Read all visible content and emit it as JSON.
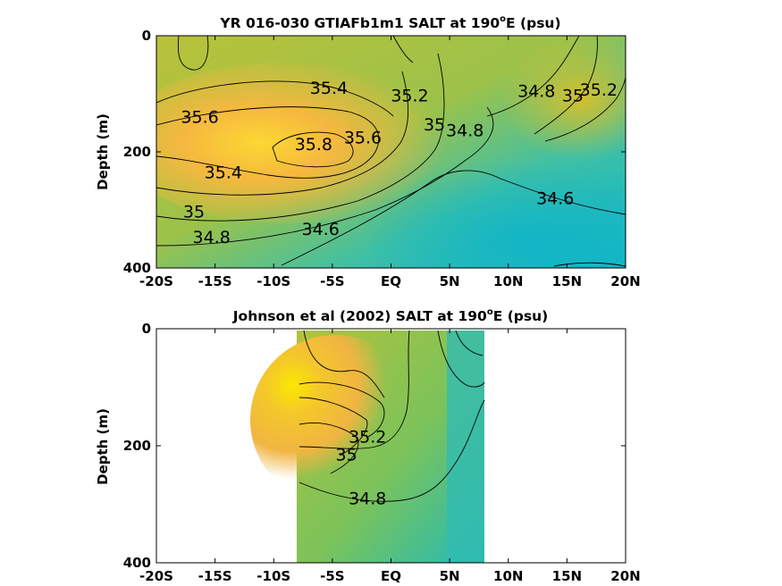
{
  "colors": {
    "low": "#14b8c8",
    "mid": "#8dc450",
    "high": "#f4e21a",
    "peak": "#fbe800",
    "orange": "#f3b53c",
    "background": "#ffffff",
    "axis": "#000000"
  },
  "chart_data": [
    {
      "type": "heatmap",
      "title": "YR 016-030 GTIAFb1m1 SALT at 190",
      "title_superscript": "o",
      "title_suffix": "E (psu)",
      "xlabel": "",
      "ylabel": "Depth (m)",
      "xlim": [
        -20,
        20
      ],
      "ylim": [
        400,
        0
      ],
      "x_ticks": [
        {
          "value": -20,
          "label": "-20S"
        },
        {
          "value": -15,
          "label": "-15S"
        },
        {
          "value": -10,
          "label": "-10S"
        },
        {
          "value": -5,
          "label": "-5S"
        },
        {
          "value": 0,
          "label": "EQ"
        },
        {
          "value": 5,
          "label": "5N"
        },
        {
          "value": 10,
          "label": "10N"
        },
        {
          "value": 15,
          "label": "15N"
        },
        {
          "value": 20,
          "label": "20N"
        }
      ],
      "y_ticks": [
        {
          "value": 0,
          "label": "0"
        },
        {
          "value": 200,
          "label": "200"
        },
        {
          "value": 400,
          "label": "400"
        }
      ],
      "data_extent_x": [
        -20,
        20
      ],
      "colorscale_psu": [
        34.4,
        35.8
      ],
      "contour_labels": [
        {
          "text": "35.4",
          "x": -5.3,
          "y": 100
        },
        {
          "text": "35.6",
          "x": -16.3,
          "y": 150
        },
        {
          "text": "35.8",
          "x": -6.6,
          "y": 197
        },
        {
          "text": "35.6",
          "x": -2.4,
          "y": 185
        },
        {
          "text": "35.2",
          "x": 1.6,
          "y": 113
        },
        {
          "text": "35",
          "x": 3.7,
          "y": 163
        },
        {
          "text": "34.8",
          "x": 6.3,
          "y": 173
        },
        {
          "text": "35.4",
          "x": -14.3,
          "y": 245
        },
        {
          "text": "35",
          "x": -16.8,
          "y": 313
        },
        {
          "text": "34.8",
          "x": -15.3,
          "y": 357
        },
        {
          "text": "34.6",
          "x": -6.0,
          "y": 343
        },
        {
          "text": "34.8",
          "x": 12.4,
          "y": 105
        },
        {
          "text": "35",
          "x": 15.5,
          "y": 113
        },
        {
          "text": "35.2",
          "x": 17.7,
          "y": 103
        },
        {
          "text": "34.6",
          "x": 14.0,
          "y": 290
        }
      ]
    },
    {
      "type": "heatmap",
      "title": "Johnson et al (2002) SALT at 190",
      "title_superscript": "o",
      "title_suffix": "E (psu)",
      "xlabel": "",
      "ylabel": "Depth (m)",
      "xlim": [
        -20,
        20
      ],
      "ylim": [
        400,
        0
      ],
      "x_ticks": [
        {
          "value": -20,
          "label": "-20S"
        },
        {
          "value": -15,
          "label": "-15S"
        },
        {
          "value": -10,
          "label": "-10S"
        },
        {
          "value": -5,
          "label": "-5S"
        },
        {
          "value": 0,
          "label": "EQ"
        },
        {
          "value": 5,
          "label": "5N"
        },
        {
          "value": 10,
          "label": "10N"
        },
        {
          "value": 15,
          "label": "15N"
        },
        {
          "value": 20,
          "label": "20N"
        }
      ],
      "y_ticks": [
        {
          "value": 0,
          "label": "0"
        },
        {
          "value": 200,
          "label": "200"
        },
        {
          "value": 400,
          "label": "400"
        }
      ],
      "data_extent_x": [
        -8,
        8
      ],
      "colorscale_psu": [
        34.4,
        35.8
      ],
      "contour_labels": [
        {
          "text": "34.8",
          "x": -2.0,
          "y": 300
        },
        {
          "text": "35",
          "x": -3.8,
          "y": 225
        },
        {
          "text": "35.2",
          "x": -2.0,
          "y": 195
        }
      ]
    }
  ]
}
